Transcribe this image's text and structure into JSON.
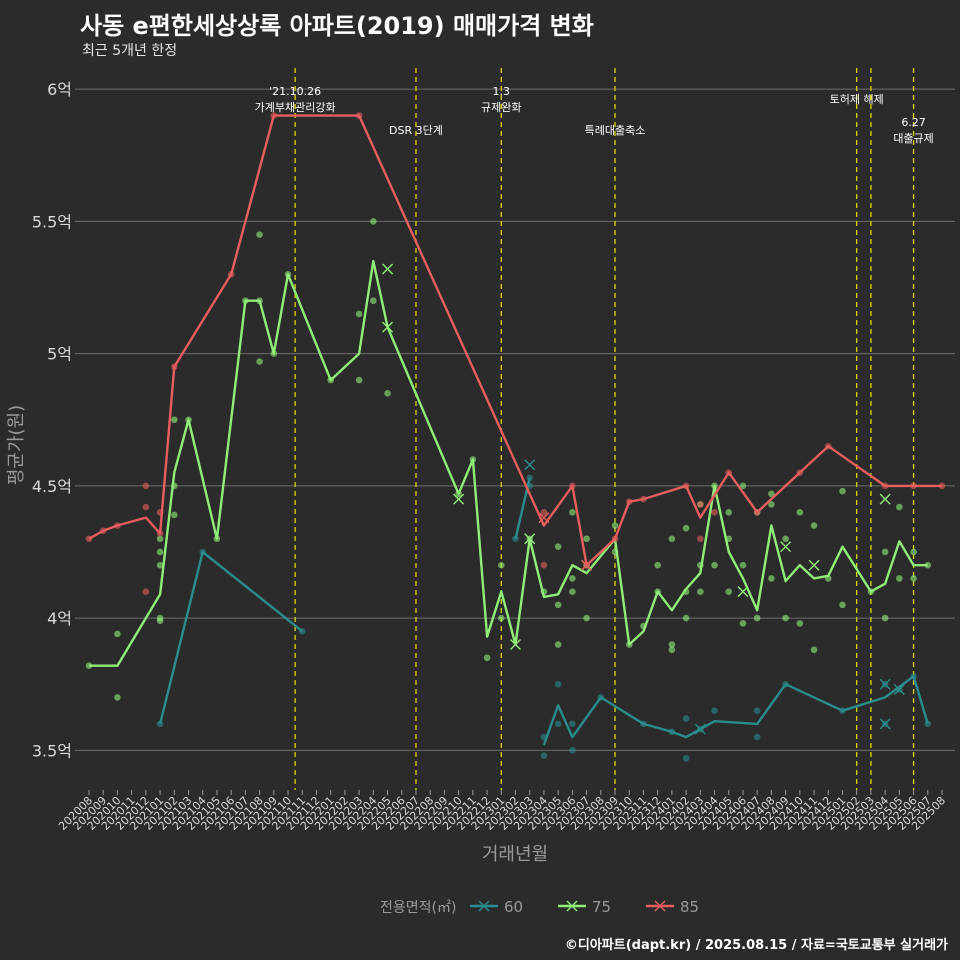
{
  "title": "사동 e편한세상상록 아파트(2019) 매매가격 변화",
  "subtitle": "최근 5개년 한정",
  "caption": "©디아파트(dapt.kr) / 2025.08.15 / 자료=국토교통부 실거래가",
  "colors": {
    "background": "#2b2b2b",
    "grid": "#6e6e6e",
    "event_line": "#d8d800",
    "text": "#ffffff",
    "axis_text": "#d9d9d9",
    "axis_title": "#9a9a9a"
  },
  "chart_data": {
    "type": "line",
    "xlabel": "거래년월",
    "ylabel": "평균가(원)",
    "categories": [
      "202008",
      "202009",
      "202010",
      "202011",
      "202012",
      "202101",
      "202102",
      "202103",
      "202104",
      "202105",
      "202106",
      "202107",
      "202108",
      "202109",
      "202110",
      "202111",
      "202112",
      "202201",
      "202202",
      "202203",
      "202204",
      "202205",
      "202206",
      "202207",
      "202208",
      "202209",
      "202210",
      "202211",
      "202212",
      "202301",
      "202302",
      "202303",
      "202304",
      "202305",
      "202306",
      "202307",
      "202308",
      "202309",
      "202310",
      "202311",
      "202312",
      "202401",
      "202402",
      "202403",
      "202404",
      "202405",
      "202406",
      "202407",
      "202408",
      "202409",
      "202410",
      "202411",
      "202412",
      "202501",
      "202502",
      "202503",
      "202504",
      "202505",
      "202506",
      "202507",
      "202508"
    ],
    "ylim": [
      3.35,
      6.08
    ],
    "yticks": [
      3.5,
      4,
      4.5,
      5,
      5.5,
      6
    ],
    "ytick_labels": [
      "3.5억",
      "4억",
      "4.5억",
      "5억",
      "5.5억",
      "6억"
    ],
    "grid": "horizontal",
    "legend": {
      "title": "전용면적(㎡)",
      "position": "bottom",
      "items": [
        {
          "label": "60",
          "color": "#2a8c8c"
        },
        {
          "label": "75",
          "color": "#90ee78"
        },
        {
          "label": "85",
          "color": "#e85d5d"
        }
      ]
    },
    "events": [
      {
        "x": "202110.5",
        "lines": [
          "'21.10.26",
          "가계부채관리강화"
        ],
        "level": 1
      },
      {
        "x": "202207",
        "lines": [
          "DSR 3단계"
        ],
        "level": 2
      },
      {
        "x": "202301",
        "lines": [
          "1.3",
          "규제완화"
        ],
        "level": 1
      },
      {
        "x": "202309",
        "lines": [
          "특례대출축소"
        ],
        "level": 2
      },
      {
        "x": "202502",
        "lines": [
          "토허제 해제"
        ],
        "level": 1
      },
      {
        "x": "202503",
        "lines": [],
        "level": 1
      },
      {
        "x": "202506",
        "lines": [
          "6.27",
          "대출규제"
        ],
        "level": 3
      }
    ],
    "series": [
      {
        "name": "60",
        "color": "#2a8c8c",
        "segments": [
          [
            [
              "202101",
              3.6
            ],
            [
              "202104",
              4.25
            ],
            [
              "202111",
              3.95
            ]
          ],
          [
            [
              "202302",
              4.3
            ],
            [
              "202303",
              4.53
            ]
          ],
          [
            [
              "202304",
              3.52
            ],
            [
              "202305",
              3.67
            ],
            [
              "202306",
              3.55
            ],
            [
              "202308",
              3.7
            ],
            [
              "202311",
              3.6
            ],
            [
              "202401",
              3.57
            ],
            [
              "202402",
              3.55
            ],
            [
              "202404",
              3.61
            ],
            [
              "202407",
              3.6
            ],
            [
              "202409",
              3.75
            ],
            [
              "202501",
              3.65
            ],
            [
              "202504",
              3.7
            ],
            [
              "202506",
              3.78
            ],
            [
              "202507",
              3.6
            ]
          ]
        ],
        "points": [
          [
            "202101",
            3.6
          ],
          [
            "202104",
            4.25
          ],
          [
            "202111",
            3.95
          ],
          [
            "202302",
            4.3
          ],
          [
            "202303",
            4.53
          ],
          [
            "202303",
            4.5
          ],
          [
            "202304",
            3.48
          ],
          [
            "202304",
            3.55
          ],
          [
            "202305",
            3.6
          ],
          [
            "202305",
            3.75
          ],
          [
            "202306",
            3.5
          ],
          [
            "202306",
            3.6
          ],
          [
            "202308",
            3.7
          ],
          [
            "202311",
            3.6
          ],
          [
            "202401",
            3.57
          ],
          [
            "202402",
            3.47
          ],
          [
            "202402",
            3.62
          ],
          [
            "202403",
            3.58
          ],
          [
            "202404",
            3.65
          ],
          [
            "202407",
            3.65
          ],
          [
            "202407",
            3.55
          ],
          [
            "202409",
            3.75
          ],
          [
            "202501",
            3.65
          ],
          [
            "202504",
            3.6
          ],
          [
            "202504",
            3.75
          ],
          [
            "202505",
            3.73
          ],
          [
            "202506",
            3.78
          ],
          [
            "202507",
            3.6
          ]
        ],
        "crosses": [
          [
            "202303",
            4.58
          ],
          [
            "202403",
            3.58
          ],
          [
            "202504",
            3.75
          ],
          [
            "202504",
            3.6
          ],
          [
            "202505",
            3.73
          ]
        ]
      },
      {
        "name": "75",
        "color": "#90ee78",
        "segments": [
          [
            [
              "202008",
              3.82
            ],
            [
              "202010",
              3.82
            ],
            [
              "202101",
              4.09
            ],
            [
              "202102",
              4.55
            ],
            [
              "202103",
              4.75
            ],
            [
              "202105",
              4.3
            ],
            [
              "202107",
              5.2
            ],
            [
              "202108",
              5.2
            ],
            [
              "202109",
              5.0
            ],
            [
              "202110",
              5.3
            ],
            [
              "202201",
              4.9
            ],
            [
              "202203",
              5.0
            ],
            [
              "202204",
              5.35
            ],
            [
              "202205",
              5.1
            ],
            [
              "202210",
              4.47
            ],
            [
              "202211",
              4.6
            ],
            [
              "202212",
              3.93
            ],
            [
              "202301",
              4.1
            ],
            [
              "202302",
              3.9
            ],
            [
              "202303",
              4.3
            ],
            [
              "202304",
              4.08
            ],
            [
              "202305",
              4.09
            ],
            [
              "202306",
              4.2
            ],
            [
              "202307",
              4.17
            ],
            [
              "202309",
              4.3
            ],
            [
              "202310",
              3.9
            ],
            [
              "202311",
              3.95
            ],
            [
              "202312",
              4.1
            ],
            [
              "202401",
              4.03
            ],
            [
              "202402",
              4.11
            ],
            [
              "202403",
              4.17
            ],
            [
              "202404",
              4.5
            ],
            [
              "202405",
              4.25
            ],
            [
              "202406",
              4.15
            ],
            [
              "202407",
              4.03
            ],
            [
              "202408",
              4.35
            ],
            [
              "202409",
              4.14
            ],
            [
              "202410",
              4.2
            ],
            [
              "202411",
              4.15
            ],
            [
              "202412",
              4.16
            ],
            [
              "202501",
              4.27
            ],
            [
              "202503",
              4.1
            ],
            [
              "202504",
              4.13
            ],
            [
              "202505",
              4.29
            ],
            [
              "202506",
              4.2
            ],
            [
              "202507",
              4.2
            ]
          ]
        ],
        "points": [
          [
            "202008",
            3.82
          ],
          [
            "202010",
            3.94
          ],
          [
            "202010",
            3.7
          ],
          [
            "202101",
            4.3
          ],
          [
            "202101",
            4.25
          ],
          [
            "202101",
            4.2
          ],
          [
            "202101",
            4.0
          ],
          [
            "202101",
            3.99
          ],
          [
            "202102",
            4.75
          ],
          [
            "202102",
            4.5
          ],
          [
            "202102",
            4.39
          ],
          [
            "202103",
            4.75
          ],
          [
            "202105",
            4.3
          ],
          [
            "202107",
            5.2
          ],
          [
            "202108",
            5.45
          ],
          [
            "202108",
            4.97
          ],
          [
            "202108",
            5.2
          ],
          [
            "202109",
            5.0
          ],
          [
            "202110",
            5.3
          ],
          [
            "202201",
            4.9
          ],
          [
            "202203",
            5.15
          ],
          [
            "202203",
            4.9
          ],
          [
            "202204",
            5.5
          ],
          [
            "202204",
            5.2
          ],
          [
            "202205",
            4.85
          ],
          [
            "202210",
            4.47
          ],
          [
            "202211",
            4.6
          ],
          [
            "202212",
            3.85
          ],
          [
            "202301",
            4.2
          ],
          [
            "202301",
            4.0
          ],
          [
            "202303",
            4.3
          ],
          [
            "202304",
            4.1
          ],
          [
            "202305",
            4.27
          ],
          [
            "202305",
            4.05
          ],
          [
            "202305",
            3.9
          ],
          [
            "202306",
            4.4
          ],
          [
            "202306",
            4.1
          ],
          [
            "202306",
            4.15
          ],
          [
            "202307",
            4.3
          ],
          [
            "202307",
            4.0
          ],
          [
            "202307",
            4.2
          ],
          [
            "202309",
            4.35
          ],
          [
            "202309",
            4.25
          ],
          [
            "202310",
            3.9
          ],
          [
            "202311",
            3.97
          ],
          [
            "202312",
            4.2
          ],
          [
            "202312",
            4.1
          ],
          [
            "202401",
            4.3
          ],
          [
            "202401",
            3.9
          ],
          [
            "202401",
            3.88
          ],
          [
            "202402",
            4.34
          ],
          [
            "202402",
            4.1
          ],
          [
            "202402",
            4.0
          ],
          [
            "202403",
            4.43
          ],
          [
            "202403",
            4.2
          ],
          [
            "202403",
            4.1
          ],
          [
            "202404",
            4.5
          ],
          [
            "202404",
            4.2
          ],
          [
            "202405",
            4.4
          ],
          [
            "202405",
            4.3
          ],
          [
            "202405",
            4.1
          ],
          [
            "202406",
            4.5
          ],
          [
            "202406",
            4.2
          ],
          [
            "202406",
            3.98
          ],
          [
            "202407",
            4.4
          ],
          [
            "202407",
            4.0
          ],
          [
            "202408",
            4.47
          ],
          [
            "202408",
            4.43
          ],
          [
            "202408",
            4.15
          ],
          [
            "202409",
            4.3
          ],
          [
            "202409",
            4.0
          ],
          [
            "202410",
            4.4
          ],
          [
            "202410",
            3.98
          ],
          [
            "202411",
            4.35
          ],
          [
            "202411",
            3.88
          ],
          [
            "202412",
            4.15
          ],
          [
            "202501",
            4.48
          ],
          [
            "202501",
            4.05
          ],
          [
            "202503",
            4.1
          ],
          [
            "202504",
            4.25
          ],
          [
            "202504",
            4.0
          ],
          [
            "202505",
            4.42
          ],
          [
            "202505",
            4.15
          ],
          [
            "202506",
            4.25
          ],
          [
            "202506",
            4.15
          ],
          [
            "202507",
            4.2
          ]
        ],
        "crosses": [
          [
            "202205",
            5.32
          ],
          [
            "202205",
            5.1
          ],
          [
            "202210",
            4.45
          ],
          [
            "202302",
            3.9
          ],
          [
            "202303",
            4.3
          ],
          [
            "202307",
            4.2
          ],
          [
            "202406",
            4.1
          ],
          [
            "202409",
            4.27
          ],
          [
            "202411",
            4.2
          ],
          [
            "202504",
            4.45
          ]
        ]
      },
      {
        "name": "85",
        "color": "#e85d5d",
        "segments": [
          [
            [
              "202008",
              4.3
            ],
            [
              "202009",
              4.33
            ],
            [
              "202010",
              4.35
            ],
            [
              "202012",
              4.38
            ],
            [
              "202101",
              4.32
            ],
            [
              "202102",
              4.95
            ],
            [
              "202106",
              5.3
            ],
            [
              "202109",
              5.9
            ],
            [
              "202203",
              5.9
            ],
            [
              "202304",
              4.35
            ],
            [
              "202306",
              4.5
            ],
            [
              "202307",
              4.2
            ],
            [
              "202309",
              4.3
            ],
            [
              "202310",
              4.44
            ],
            [
              "202311",
              4.45
            ],
            [
              "202402",
              4.5
            ],
            [
              "202403",
              4.38
            ],
            [
              "202405",
              4.55
            ],
            [
              "202407",
              4.4
            ],
            [
              "202410",
              4.55
            ],
            [
              "202412",
              4.65
            ],
            [
              "202504",
              4.5
            ],
            [
              "202508",
              4.5
            ]
          ]
        ],
        "points": [
          [
            "202008",
            4.3
          ],
          [
            "202009",
            4.33
          ],
          [
            "202010",
            4.35
          ],
          [
            "202012",
            4.5
          ],
          [
            "202012",
            4.42
          ],
          [
            "202012",
            4.1
          ],
          [
            "202101",
            4.4
          ],
          [
            "202101",
            4.32
          ],
          [
            "202102",
            4.95
          ],
          [
            "202106",
            5.3
          ],
          [
            "202109",
            5.9
          ],
          [
            "202203",
            5.9
          ],
          [
            "202304",
            4.4
          ],
          [
            "202304",
            4.2
          ],
          [
            "202306",
            4.5
          ],
          [
            "202307",
            4.2
          ],
          [
            "202309",
            4.3
          ],
          [
            "202310",
            4.44
          ],
          [
            "202311",
            4.45
          ],
          [
            "202402",
            4.5
          ],
          [
            "202403",
            4.43
          ],
          [
            "202403",
            4.3
          ],
          [
            "202404",
            4.4
          ],
          [
            "202405",
            4.55
          ],
          [
            "202407",
            4.4
          ],
          [
            "202410",
            4.55
          ],
          [
            "202412",
            4.65
          ],
          [
            "202504",
            4.5
          ],
          [
            "202506",
            4.5
          ],
          [
            "202508",
            4.5
          ]
        ],
        "crosses": [
          [
            "202304",
            4.38
          ],
          [
            "202307",
            4.2
          ]
        ]
      }
    ]
  }
}
